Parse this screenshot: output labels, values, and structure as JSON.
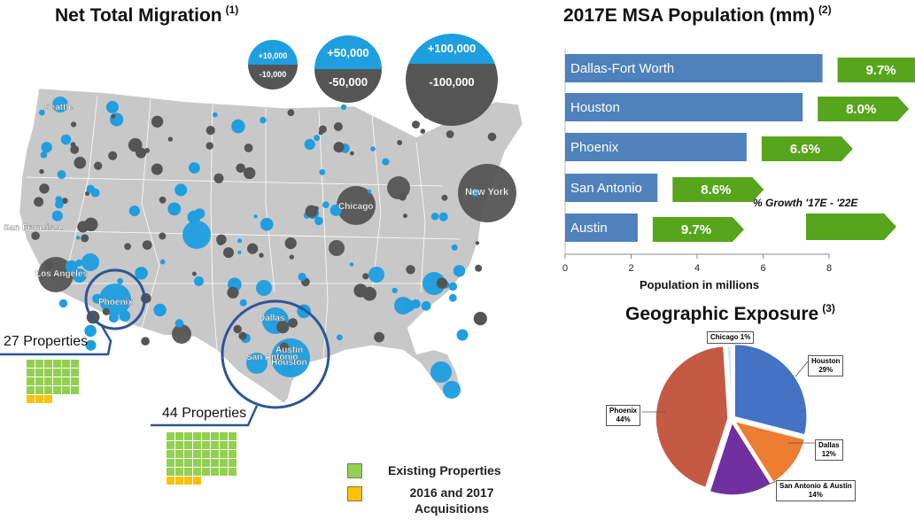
{
  "migration": {
    "title": "Net Total Migration",
    "footnote": "(1)",
    "bubble_legend": [
      {
        "pos": "+10,000",
        "neg": "-10,000"
      },
      {
        "pos": "+50,000",
        "neg": "-50,000"
      },
      {
        "pos": "+100,000",
        "neg": "-100,000"
      }
    ],
    "city_labels": [
      "Seattle",
      "San Francisco",
      "Los Angeles",
      "Phoenix",
      "Dallas",
      "San Antonio",
      "Austin",
      "Houston",
      "Chicago",
      "New York"
    ],
    "phoenix_properties": "27 Properties",
    "texas_properties": "44 Properties",
    "phoenix_counts": {
      "existing": 24,
      "acquired": 3
    },
    "texas_counts": {
      "existing": 40,
      "acquired": 4
    },
    "legend": {
      "existing": "Existing Properties",
      "acquired": "2016 and 2017 Acquisitions"
    },
    "colors": {
      "positive": "#1f9ee0",
      "negative": "#555555",
      "map": "#c8c8c8",
      "existing": "#92d050",
      "acquired": "#ffc000",
      "ring": "#2e5596"
    }
  },
  "chart_data": [
    {
      "type": "bar",
      "title": "2017E MSA Population (mm)",
      "footnote": "(2)",
      "orientation": "horizontal",
      "categories": [
        "Dallas-Fort Worth",
        "Houston",
        "Phoenix",
        "San Antonio",
        "Austin"
      ],
      "values": [
        7.8,
        7.2,
        5.5,
        2.8,
        2.2
      ],
      "growth": [
        "9.7%",
        "8.0%",
        "6.6%",
        "8.6%",
        "9.7%"
      ],
      "growth_label": "% Growth '17E - '22E",
      "xlabel": "Population in millions",
      "xlim": [
        0,
        8
      ],
      "xticks": [
        0,
        2,
        4,
        6,
        8
      ],
      "colors": {
        "bar": "#4f81bd",
        "growth": "#56a51c"
      }
    },
    {
      "type": "pie",
      "title": "Geographic Exposure",
      "footnote": "(3)",
      "slices": [
        {
          "label": "Houston",
          "pct": "29%",
          "value": 29,
          "color": "#4472c4"
        },
        {
          "label": "Dallas",
          "pct": "12%",
          "value": 12,
          "color": "#ed7d31"
        },
        {
          "label": "San Antonio & Austin",
          "pct": "14%",
          "value": 14,
          "color": "#7030a0"
        },
        {
          "label": "Phoenix",
          "pct": "44%",
          "value": 44,
          "color": "#c55a44"
        },
        {
          "label": "Chicago",
          "pct": "1%",
          "value": 1,
          "color": "#dbe6f4"
        }
      ]
    }
  ]
}
